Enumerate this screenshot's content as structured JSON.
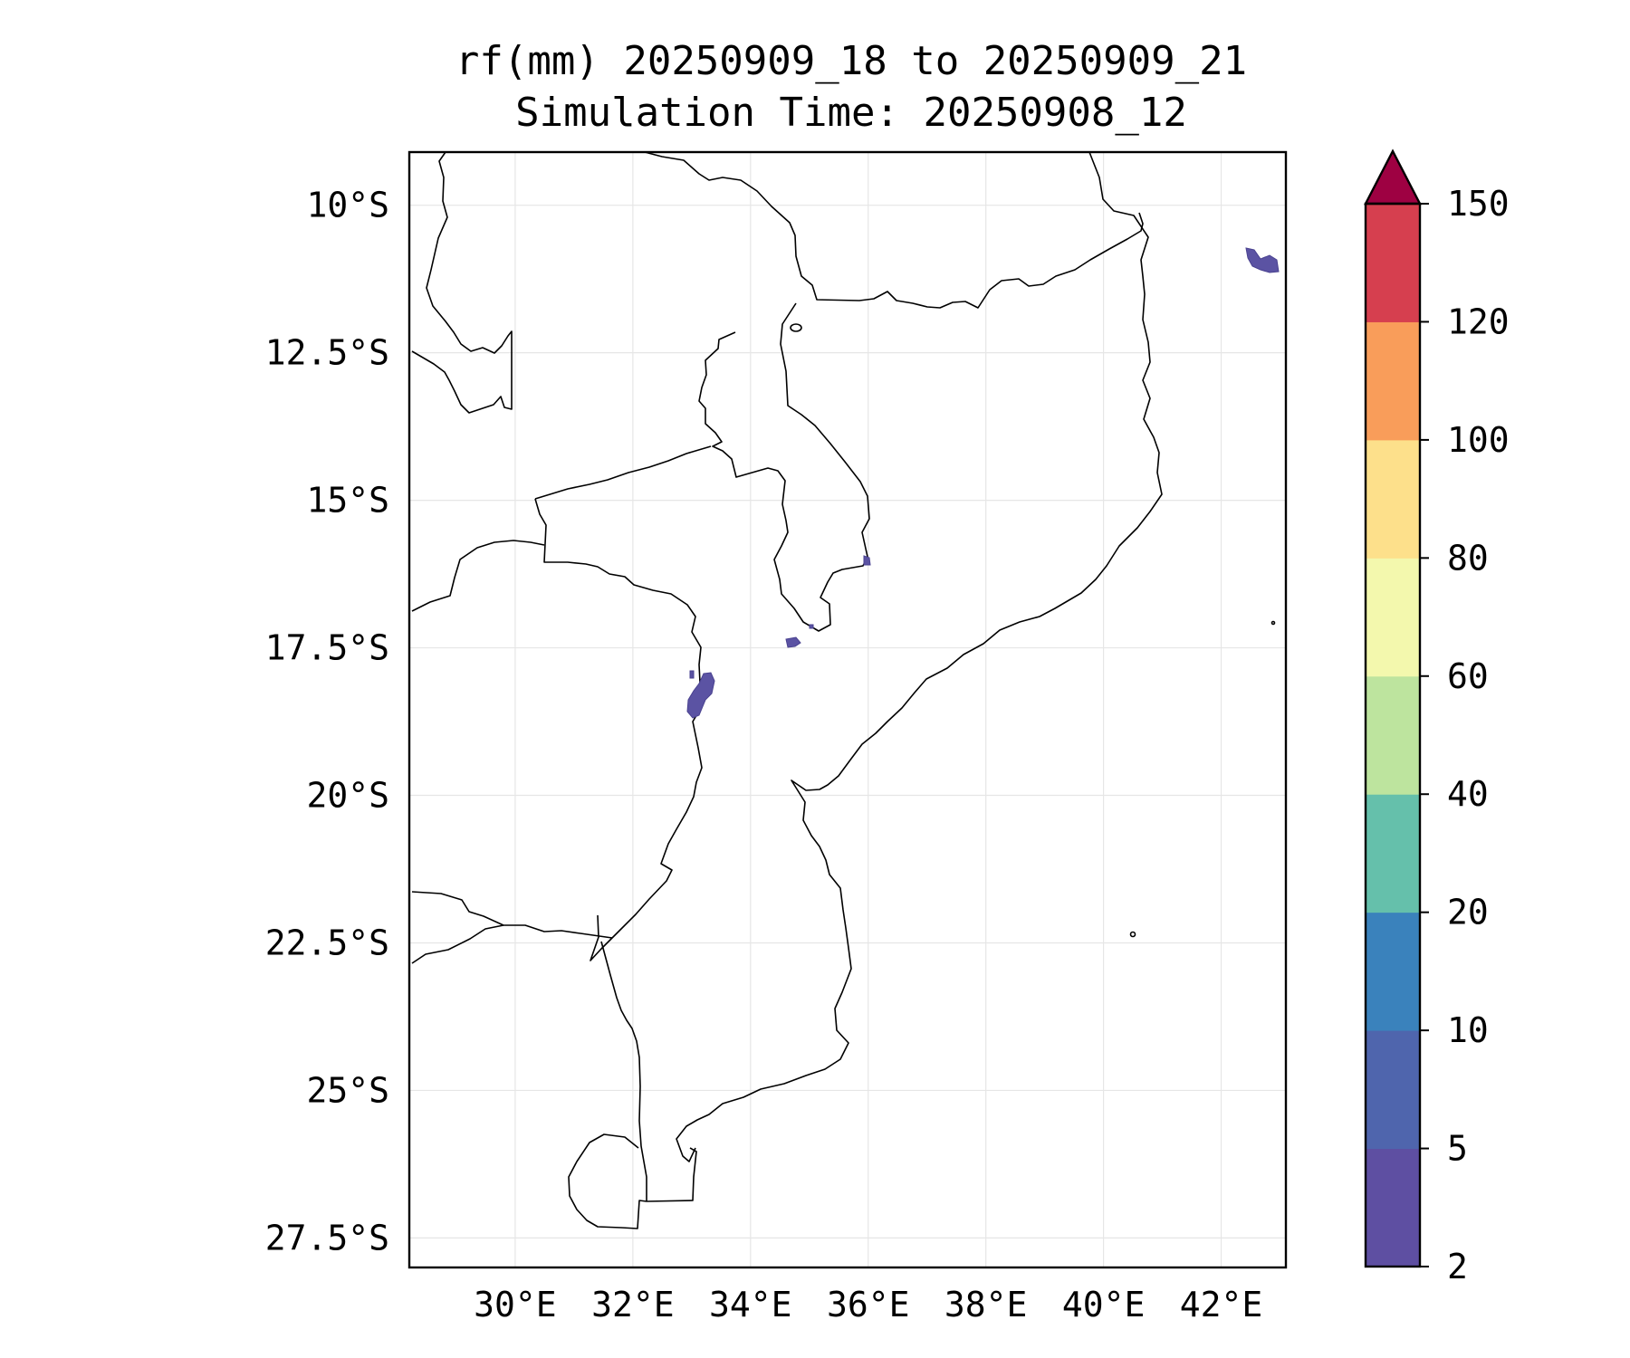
{
  "title": {
    "line1": "rf(mm) 20250909_18 to 20250909_21",
    "line2": "Simulation Time: 20250908_12"
  },
  "map": {
    "lon_range": [
      28.2,
      43.1
    ],
    "lat_range": [
      -28.0,
      -9.1
    ],
    "lon_ticks": [
      {
        "value": 30,
        "label": "30°E"
      },
      {
        "value": 32,
        "label": "32°E"
      },
      {
        "value": 34,
        "label": "34°E"
      },
      {
        "value": 36,
        "label": "36°E"
      },
      {
        "value": 38,
        "label": "38°E"
      },
      {
        "value": 40,
        "label": "40°E"
      },
      {
        "value": 42,
        "label": "42°E"
      }
    ],
    "lat_ticks": [
      {
        "value": -10,
        "label": "10°S"
      },
      {
        "value": -12.5,
        "label": "12.5°S"
      },
      {
        "value": -15,
        "label": "15°S"
      },
      {
        "value": -17.5,
        "label": "17.5°S"
      },
      {
        "value": -20,
        "label": "20°S"
      },
      {
        "value": -22.5,
        "label": "22.5°S"
      },
      {
        "value": -25,
        "label": "25°S"
      },
      {
        "value": -27.5,
        "label": "27.5°S"
      }
    ],
    "gridlines": true
  },
  "colorbar": {
    "levels": [
      "2",
      "5",
      "10",
      "20",
      "40",
      "60",
      "80",
      "100",
      "120",
      "150"
    ],
    "colors": [
      "#5e4fa2",
      "#4f65ad",
      "#3a82bc",
      "#65c0ab",
      "#bde49e",
      "#f3f8ad",
      "#fde08b",
      "#f99d5a",
      "#d63f4f"
    ],
    "extend_color": "#9e0142",
    "extend": "max"
  },
  "chart_data": {
    "type": "heatmap",
    "title": "rf(mm) 20250909_18 to 20250909_21\nSimulation Time: 20250908_12",
    "variable": "rf(mm)",
    "x_range": [
      28.2,
      43.1
    ],
    "y_range": [
      -28.0,
      -9.1
    ],
    "colorbar_levels": [
      2,
      5,
      10,
      20,
      40,
      60,
      80,
      100,
      120,
      150
    ],
    "rain_areas": [
      {
        "region": "north-east offshore",
        "lon": 42.5,
        "lat": -11.0,
        "class": "2-5"
      },
      {
        "region": "south Lake Malawi",
        "lon": 35.9,
        "lat": -16.1,
        "class": "2-5"
      },
      {
        "region": "central Mozambique",
        "lon": 34.6,
        "lat": -17.4,
        "class": "2-5"
      },
      {
        "region": "Zimbabwe-Mozambique border",
        "lon": 33.0,
        "lat": -18.4,
        "class": "2-5"
      }
    ]
  }
}
